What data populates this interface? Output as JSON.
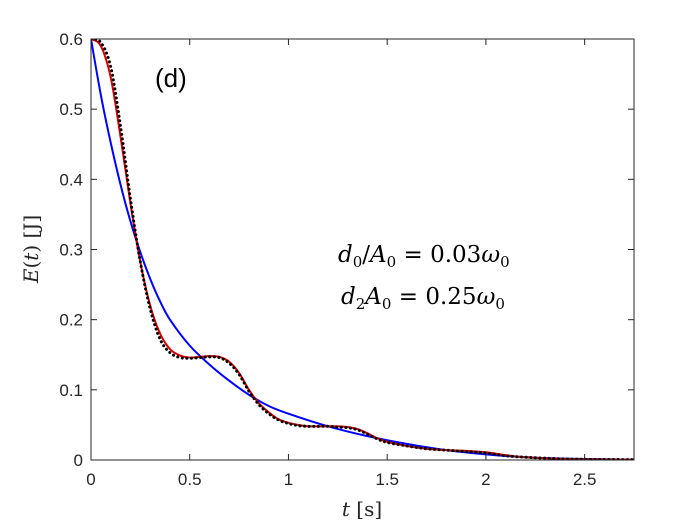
{
  "chart_data": {
    "type": "line",
    "panel_label": "(d)",
    "xlabel": "t [s]",
    "ylabel": "E(t) [J]",
    "xlim": [
      0,
      2.75
    ],
    "ylim": [
      0,
      0.6
    ],
    "xticks": [
      0,
      0.5,
      1,
      1.5,
      2,
      2.5
    ],
    "xtick_labels": [
      "0",
      "0.5",
      "1",
      "1.5",
      "2",
      "2.5"
    ],
    "yticks": [
      0,
      0.1,
      0.2,
      0.3,
      0.4,
      0.5,
      0.6
    ],
    "ytick_labels": [
      "0",
      "0.1",
      "0.2",
      "0.3",
      "0.4",
      "0.5",
      "0.6"
    ],
    "annotations": [
      "d0/A0 = 0.03ω0",
      "d2A0 = 0.25ω0"
    ],
    "grid": false,
    "series": [
      {
        "color": "#0000ff",
        "style": "solid",
        "x": [
          0,
          0.05,
          0.1,
          0.15,
          0.2,
          0.25,
          0.3,
          0.35,
          0.4,
          0.5,
          0.6,
          0.7,
          0.8,
          0.9,
          1.0,
          1.2,
          1.4,
          1.6,
          1.8,
          2.0,
          2.2,
          2.4,
          2.6,
          2.75
        ],
        "y": [
          0.6,
          0.52,
          0.452,
          0.392,
          0.34,
          0.296,
          0.258,
          0.226,
          0.2,
          0.163,
          0.136,
          0.113,
          0.093,
          0.077,
          0.066,
          0.048,
          0.034,
          0.023,
          0.014,
          0.008,
          0.004,
          0.002,
          0.001,
          0.0005
        ]
      },
      {
        "color": "#d40000",
        "style": "solid",
        "x": [
          0,
          0.05,
          0.1,
          0.15,
          0.2,
          0.25,
          0.3,
          0.35,
          0.4,
          0.45,
          0.5,
          0.55,
          0.6,
          0.65,
          0.7,
          0.75,
          0.8,
          0.85,
          0.9,
          0.95,
          1.0,
          1.05,
          1.1,
          1.15,
          1.2,
          1.25,
          1.3,
          1.35,
          1.4,
          1.45,
          1.5,
          1.6,
          1.7,
          1.8,
          1.9,
          2.0,
          2.1,
          2.2,
          2.35,
          2.5,
          2.75
        ],
        "y": [
          0.6,
          0.59,
          0.545,
          0.46,
          0.365,
          0.282,
          0.22,
          0.18,
          0.158,
          0.149,
          0.146,
          0.147,
          0.148,
          0.147,
          0.14,
          0.124,
          0.1,
          0.081,
          0.068,
          0.058,
          0.053,
          0.05,
          0.048,
          0.048,
          0.048,
          0.048,
          0.047,
          0.044,
          0.038,
          0.031,
          0.026,
          0.02,
          0.016,
          0.014,
          0.013,
          0.011,
          0.007,
          0.004,
          0.002,
          0.001,
          0.0005
        ]
      },
      {
        "color": "#000000",
        "style": "dotted",
        "x": [
          0,
          0.05,
          0.1,
          0.15,
          0.2,
          0.25,
          0.3,
          0.35,
          0.4,
          0.45,
          0.5,
          0.55,
          0.6,
          0.65,
          0.7,
          0.75,
          0.8,
          0.85,
          0.9,
          0.95,
          1.0,
          1.05,
          1.1,
          1.15,
          1.2,
          1.25,
          1.3,
          1.35,
          1.4,
          1.45,
          1.5,
          1.6,
          1.7,
          1.8,
          1.9,
          2.0,
          2.1,
          2.2,
          2.35,
          2.5,
          2.75
        ],
        "y": [
          0.6,
          0.595,
          0.56,
          0.475,
          0.372,
          0.282,
          0.215,
          0.172,
          0.153,
          0.146,
          0.145,
          0.146,
          0.147,
          0.146,
          0.138,
          0.122,
          0.098,
          0.079,
          0.066,
          0.057,
          0.052,
          0.049,
          0.048,
          0.048,
          0.048,
          0.047,
          0.046,
          0.043,
          0.037,
          0.03,
          0.025,
          0.02,
          0.016,
          0.014,
          0.012,
          0.01,
          0.006,
          0.004,
          0.002,
          0.001,
          0.0005
        ]
      }
    ]
  }
}
